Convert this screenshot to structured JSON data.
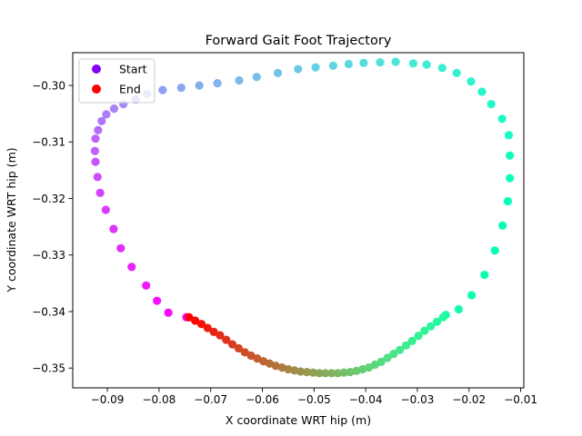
{
  "chart_data": {
    "type": "scatter",
    "title": "Forward Gait Foot Trajectory",
    "xlabel": "X coordinate WRT hip (m)",
    "ylabel": "Y coordinate WRT hip (m)",
    "xlim": [
      -0.0967,
      -0.0094
    ],
    "ylim": [
      -0.3535,
      -0.2942
    ],
    "xticks": [
      -0.09,
      -0.08,
      -0.07,
      -0.06,
      -0.05,
      -0.04,
      -0.03,
      -0.02,
      -0.01
    ],
    "xtick_labels": [
      "−0.09",
      "−0.08",
      "−0.07",
      "−0.06",
      "−0.05",
      "−0.04",
      "−0.03",
      "−0.02",
      "−0.01"
    ],
    "yticks": [
      -0.35,
      -0.34,
      -0.33,
      -0.32,
      -0.31,
      -0.3
    ],
    "ytick_labels": [
      "−0.35",
      "−0.34",
      "−0.33",
      "−0.32",
      "−0.31",
      "−0.30"
    ],
    "grid": false,
    "colormap": "rainbow",
    "legend": {
      "placement": "top-left",
      "entries": [
        {
          "label": "Start",
          "color": "#7f00ff"
        },
        {
          "label": "End",
          "color": "#ff0000"
        }
      ]
    },
    "series": [
      {
        "x": [
          -0.0747,
          -0.0782,
          -0.0804,
          -0.0825,
          -0.0853,
          -0.0874,
          -0.0888,
          -0.0903,
          -0.0914,
          -0.0919,
          -0.0923,
          -0.0924,
          -0.0923,
          -0.0918,
          -0.0911,
          -0.0902,
          -0.0887,
          -0.0869,
          -0.0845,
          -0.0823,
          -0.0793,
          -0.0757,
          -0.0722,
          -0.0687,
          -0.0645,
          -0.0611,
          -0.057,
          -0.0531,
          -0.0497,
          -0.0463,
          -0.0433,
          -0.0404,
          -0.0372,
          -0.0342,
          -0.0308,
          -0.0282,
          -0.0252,
          -0.0224,
          -0.0196,
          -0.0175,
          -0.0157,
          -0.0136,
          -0.0123,
          -0.0121,
          -0.0121,
          -0.0125,
          -0.0135,
          -0.015,
          -0.017,
          -0.0195,
          -0.022,
          -0.0245
        ],
        "y": [
          -0.341,
          -0.3402,
          -0.3381,
          -0.3354,
          -0.3321,
          -0.3288,
          -0.3254,
          -0.322,
          -0.319,
          -0.3162,
          -0.3135,
          -0.3116,
          -0.3094,
          -0.3079,
          -0.3063,
          -0.3051,
          -0.3041,
          -0.3033,
          -0.3025,
          -0.3015,
          -0.3008,
          -0.3004,
          -0.3,
          -0.2996,
          -0.2991,
          -0.2985,
          -0.2978,
          -0.2971,
          -0.2968,
          -0.2965,
          -0.2962,
          -0.296,
          -0.2959,
          -0.2958,
          -0.2961,
          -0.2963,
          -0.2969,
          -0.2978,
          -0.2993,
          -0.3011,
          -0.3033,
          -0.3059,
          -0.3088,
          -0.3124,
          -0.3164,
          -0.3205,
          -0.3248,
          -0.3292,
          -0.3335,
          -0.3371,
          -0.3396,
          -0.3406
        ]
      },
      {
        "x": [
          -0.025,
          -0.0262,
          -0.0274,
          -0.0286,
          -0.0298,
          -0.031,
          -0.0322,
          -0.0334,
          -0.0346,
          -0.0358,
          -0.037,
          -0.0382,
          -0.0394,
          -0.0406,
          -0.0418,
          -0.043,
          -0.0442,
          -0.0454,
          -0.0466,
          -0.0478,
          -0.049,
          -0.0502,
          -0.0514,
          -0.0526,
          -0.0538,
          -0.055,
          -0.0562,
          -0.0574,
          -0.0586,
          -0.0598,
          -0.061,
          -0.0622,
          -0.0634,
          -0.0646,
          -0.0658,
          -0.067,
          -0.0682,
          -0.0694,
          -0.0706,
          -0.0718,
          -0.073,
          -0.0742
        ],
        "y": [
          -0.341,
          -0.3418,
          -0.3426,
          -0.3434,
          -0.3443,
          -0.3452,
          -0.346,
          -0.3468,
          -0.3475,
          -0.3482,
          -0.3489,
          -0.3494,
          -0.3499,
          -0.3502,
          -0.3505,
          -0.3507,
          -0.3508,
          -0.3509,
          -0.3509,
          -0.3509,
          -0.3509,
          -0.3508,
          -0.3507,
          -0.3506,
          -0.3504,
          -0.3502,
          -0.3499,
          -0.3496,
          -0.3492,
          -0.3488,
          -0.3483,
          -0.3478,
          -0.3472,
          -0.3465,
          -0.3458,
          -0.345,
          -0.3442,
          -0.3436,
          -0.3429,
          -0.3422,
          -0.3416,
          -0.341
        ]
      }
    ]
  }
}
